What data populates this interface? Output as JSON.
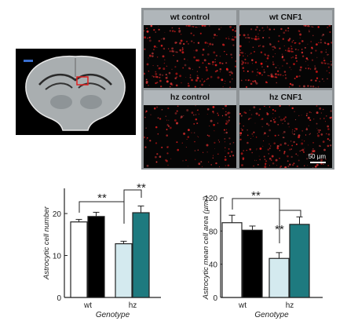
{
  "micrograph_panel": {
    "labels": [
      "wt control",
      "wt CNF1",
      "hz control",
      "hz CNF1"
    ],
    "scale_bar": "50 µm"
  },
  "chart_data": [
    {
      "type": "bar",
      "categories": [
        "wt",
        "hz"
      ],
      "series": [
        {
          "values": [
            18.0,
            12.8
          ],
          "errors": [
            0.6,
            0.6
          ]
        },
        {
          "values": [
            19.3,
            20.2
          ],
          "errors": [
            1.0,
            1.6
          ]
        }
      ],
      "bar_colors": [
        "#ffffff",
        "#000000",
        "#d4eaef",
        "#1e7a7f"
      ],
      "ylim": [
        0,
        26
      ],
      "yticks": [
        "0",
        "10",
        "20"
      ],
      "ytick_values": [
        0,
        10,
        20
      ],
      "ylabel": "Astrocytic cell number",
      "xlabel": "Genotype",
      "significance": [
        "**",
        "**"
      ]
    },
    {
      "type": "bar",
      "categories": [
        "wt",
        "hz"
      ],
      "series": [
        {
          "values": [
            90,
            47
          ],
          "errors": [
            9,
            7
          ]
        },
        {
          "values": [
            81,
            88
          ],
          "errors": [
            5,
            9
          ]
        }
      ],
      "bar_colors": [
        "#ffffff",
        "#000000",
        "#d4eaef",
        "#1e7a7f"
      ],
      "ylim": [
        0,
        120
      ],
      "yticks": [
        "0",
        "40",
        "80",
        "120"
      ],
      "ytick_values": [
        0,
        40,
        80,
        120
      ],
      "ylabel": "Astrocytic mean cell area (µm²)",
      "xlabel": "Genotype",
      "significance": [
        "**",
        "**"
      ]
    }
  ]
}
